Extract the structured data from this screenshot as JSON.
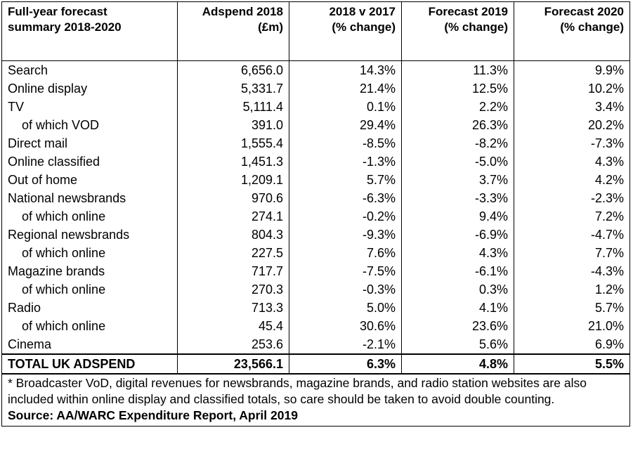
{
  "header": {
    "label_line1": "Full-year forecast",
    "label_line2": "summary 2018-2020",
    "col2_line1": "Adspend 2018",
    "col2_line2": "(£m)",
    "col3_line1": "2018 v 2017",
    "col3_line2": "(% change)",
    "col4_line1": "Forecast 2019",
    "col4_line2": "(% change)",
    "col5_line1": "Forecast 2020",
    "col5_line2": "(% change)"
  },
  "rows": [
    {
      "label": "Search",
      "adspend": "6,656.0",
      "chg2018": "14.3%",
      "f2019": "11.3%",
      "f2020": "9.9%"
    },
    {
      "label": "Online display",
      "adspend": "5,331.7",
      "chg2018": "21.4%",
      "f2019": "12.5%",
      "f2020": "10.2%"
    },
    {
      "label": "TV",
      "adspend": "5,111.4",
      "chg2018": "0.1%",
      "f2019": "2.2%",
      "f2020": "3.4%"
    },
    {
      "label": "of which VOD",
      "adspend": "391.0",
      "chg2018": "29.4%",
      "f2019": "26.3%",
      "f2020": "20.2%"
    },
    {
      "label": "Direct mail",
      "adspend": "1,555.4",
      "chg2018": "-8.5%",
      "f2019": "-8.2%",
      "f2020": "-7.3%"
    },
    {
      "label": "Online classified",
      "adspend": "1,451.3",
      "chg2018": "-1.3%",
      "f2019": "-5.0%",
      "f2020": "4.3%"
    },
    {
      "label": "Out of home",
      "adspend": "1,209.1",
      "chg2018": "5.7%",
      "f2019": "3.7%",
      "f2020": "4.2%"
    },
    {
      "label": "National newsbrands",
      "adspend": "970.6",
      "chg2018": "-6.3%",
      "f2019": "-3.3%",
      "f2020": "-2.3%"
    },
    {
      "label": "of which online",
      "adspend": "274.1",
      "chg2018": "-0.2%",
      "f2019": "9.4%",
      "f2020": "7.2%"
    },
    {
      "label": "Regional newsbrands",
      "adspend": "804.3",
      "chg2018": "-9.3%",
      "f2019": "-6.9%",
      "f2020": "-4.7%"
    },
    {
      "label": "of which online",
      "adspend": "227.5",
      "chg2018": "7.6%",
      "f2019": "4.3%",
      "f2020": "7.7%"
    },
    {
      "label": "Magazine brands",
      "adspend": "717.7",
      "chg2018": "-7.5%",
      "f2019": "-6.1%",
      "f2020": "-4.3%"
    },
    {
      "label": "of which online",
      "adspend": "270.3",
      "chg2018": "-0.3%",
      "f2019": "0.3%",
      "f2020": "1.2%"
    },
    {
      "label": "Radio",
      "adspend": "713.3",
      "chg2018": "5.0%",
      "f2019": "4.1%",
      "f2020": "5.7%"
    },
    {
      "label": "of which online",
      "adspend": "45.4",
      "chg2018": "30.6%",
      "f2019": "23.6%",
      "f2020": "21.0%"
    },
    {
      "label": "Cinema",
      "adspend": "253.6",
      "chg2018": "-2.1%",
      "f2019": "5.6%",
      "f2020": "6.9%"
    }
  ],
  "total": {
    "label": "TOTAL UK ADSPEND",
    "adspend": "23,566.1",
    "chg2018": "6.3%",
    "f2019": "4.8%",
    "f2020": "5.5%"
  },
  "footnote": "* Broadcaster VoD, digital revenues for newsbrands, magazine brands, and radio station websites are also included within online display and classified totals, so care should be taken to avoid double counting.",
  "source": "Source: AA/WARC Expenditure Report, April 2019"
}
